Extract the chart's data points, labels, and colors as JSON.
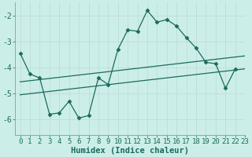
{
  "xlabel": "Humidex (Indice chaleur)",
  "bg_color": "#cceee8",
  "grid_color": "#c0ddd8",
  "line_color": "#1a6b5e",
  "spine_color": "#888888",
  "tick_color": "#1a6b5e",
  "xlim": [
    -0.5,
    23
  ],
  "ylim": [
    -6.6,
    -1.5
  ],
  "yticks": [
    -6,
    -5,
    -4,
    -3,
    -2
  ],
  "xticks": [
    0,
    1,
    2,
    3,
    4,
    5,
    6,
    7,
    8,
    9,
    10,
    11,
    12,
    13,
    14,
    15,
    16,
    17,
    18,
    19,
    20,
    21,
    22,
    23
  ],
  "main_x": [
    0,
    1,
    2,
    3,
    4,
    5,
    6,
    7,
    8,
    9,
    10,
    11,
    12,
    13,
    14,
    15,
    16,
    17,
    18,
    19,
    20,
    21,
    22
  ],
  "main_y": [
    -3.45,
    -4.25,
    -4.4,
    -5.8,
    -5.75,
    -5.3,
    -5.95,
    -5.85,
    -4.4,
    -4.65,
    -3.3,
    -2.55,
    -2.6,
    -1.8,
    -2.25,
    -2.15,
    -2.4,
    -2.85,
    -3.25,
    -3.8,
    -3.85,
    -4.8,
    -4.05
  ],
  "upper_line_x": [
    0,
    23
  ],
  "upper_line_y": [
    -4.55,
    -3.55
  ],
  "lower_line_x": [
    0,
    23
  ],
  "lower_line_y": [
    -5.05,
    -4.05
  ],
  "marker": "D",
  "markersize": 2.5,
  "linewidth": 0.9,
  "tick_fontsize": 6.5,
  "xlabel_fontsize": 7.5
}
